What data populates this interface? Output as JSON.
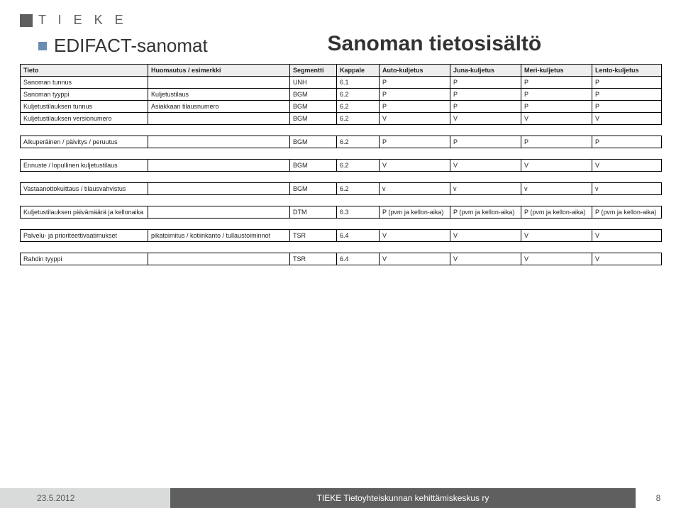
{
  "logo": {
    "text": "T I E K E"
  },
  "heading": {
    "main_title": "Sanoman tietosisältö",
    "subtitle": "EDIFACT-sanomat"
  },
  "table": {
    "headers": [
      "Tieto",
      "Huomautus / esimerkki",
      "Segmentti",
      "Kappale",
      "Auto-kuljetus",
      "Juna-kuljetus",
      "Meri-kuljetus",
      "Lento-kuljetus"
    ],
    "groups": [
      {
        "rows": [
          {
            "c": [
              "Sanoman tunnus",
              "",
              "UNH",
              "6.1",
              "P",
              "P",
              "P",
              "P"
            ]
          },
          {
            "c": [
              "Sanoman tyyppi",
              "Kuljetustilaus",
              "BGM",
              "6.2",
              "P",
              "P",
              "P",
              "P"
            ]
          },
          {
            "c": [
              "Kuljetustilauksen tunnus",
              "Asiakkaan tilausnumero",
              "BGM",
              "6.2",
              "P",
              "P",
              "P",
              "P"
            ]
          },
          {
            "c": [
              "Kuljetustilauksen versionumero",
              "",
              "BGM",
              "6.2",
              "V",
              "V",
              "V",
              "V"
            ]
          }
        ]
      },
      {
        "rows": [
          {
            "c": [
              "Alkuperäinen / päivitys / peruutus",
              "",
              "BGM",
              "6.2",
              "P",
              "P",
              "P",
              "P"
            ]
          }
        ]
      },
      {
        "rows": [
          {
            "c": [
              "Ennuste / lopullinen kuljetustilaus",
              "",
              "BGM",
              "6.2",
              "V",
              "V",
              "V",
              "V"
            ]
          }
        ]
      },
      {
        "rows": [
          {
            "c": [
              "Vastaanottokuittaus / tilausvahvistus",
              "",
              "BGM",
              "6.2",
              "v",
              "v",
              "v",
              "v"
            ]
          }
        ]
      },
      {
        "rows": [
          {
            "c": [
              "Kuljetustilauksen päivämäärä ja kellonaika",
              "",
              "DTM",
              "6.3",
              "P (pvm ja kellon-aika)",
              "P (pvm ja kellon-aika)",
              "P (pvm ja kellon-aika)",
              "P (pvm ja kellon-aika)"
            ]
          }
        ]
      },
      {
        "rows": [
          {
            "c": [
              "Palvelu- ja prioriteettivaatimukset",
              "pikatoimitus / kotiinkanto / tullaustoiminnot",
              "TSR",
              "6.4",
              "V",
              "V",
              "V",
              "V"
            ]
          }
        ]
      },
      {
        "rows": [
          {
            "c": [
              "Rahdin tyyppi",
              "",
              "TSR",
              "6.4",
              "V",
              "V",
              "V",
              "V"
            ]
          }
        ]
      }
    ]
  },
  "footer": {
    "date": "23.5.2012",
    "org": "TIEKE Tietoyhteiskunnan kehittämiskeskus ry",
    "page": "8"
  }
}
